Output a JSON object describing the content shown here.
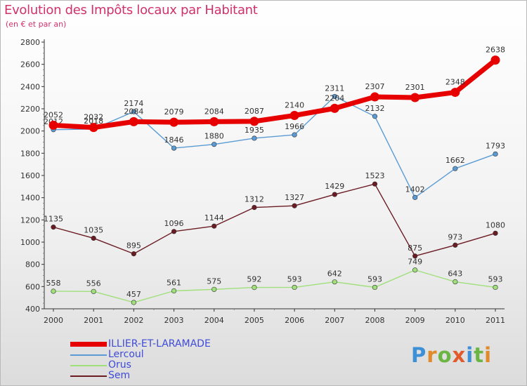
{
  "chart_data": {
    "type": "line",
    "title": "Evolution des Impôts locaux par Habitant",
    "subtitle": "(en € et par an)",
    "categories": [
      "2000",
      "2001",
      "2002",
      "2003",
      "2004",
      "2005",
      "2006",
      "2007",
      "2008",
      "2009",
      "2010",
      "2011"
    ],
    "ylim": [
      400,
      2800
    ],
    "yticks": [
      400,
      600,
      800,
      1000,
      1200,
      1400,
      1600,
      1800,
      2000,
      2200,
      2400,
      2600,
      2800
    ],
    "xlabel": "",
    "ylabel": "",
    "grid": false,
    "legend_position": "bottom-left",
    "series": [
      {
        "name": "ILLIER-ET-LARAMADE",
        "color": "#e60000",
        "values": [
          2052,
          2032,
          2084,
          2079,
          2084,
          2087,
          2140,
          2204,
          2307,
          2301,
          2348,
          2638
        ]
      },
      {
        "name": "Lercoul",
        "color": "#5b9bd5",
        "values": [
          2012,
          2018,
          2174,
          1846,
          1880,
          1935,
          1966,
          2311,
          2132,
          1402,
          1662,
          1793
        ]
      },
      {
        "name": "Orus",
        "color": "#9fe07a",
        "values": [
          558,
          556,
          457,
          561,
          575,
          592,
          593,
          642,
          593,
          749,
          643,
          593
        ]
      },
      {
        "name": "Sem",
        "color": "#6b1b22",
        "values": [
          1135,
          1035,
          895,
          1096,
          1144,
          1312,
          1327,
          1429,
          1523,
          875,
          973,
          1080
        ]
      }
    ]
  },
  "brand": {
    "letters": [
      {
        "ch": "P",
        "color": "#3d8fd6"
      },
      {
        "ch": "r",
        "color": "#e08a2a"
      },
      {
        "ch": "o",
        "color": "#6bb543"
      },
      {
        "ch": "x",
        "color": "#e05a2c"
      },
      {
        "ch": "i",
        "color": "#3d8fd6"
      },
      {
        "ch": "t",
        "color": "#6bb543"
      },
      {
        "ch": "i",
        "color": "#e08a2a"
      }
    ]
  }
}
